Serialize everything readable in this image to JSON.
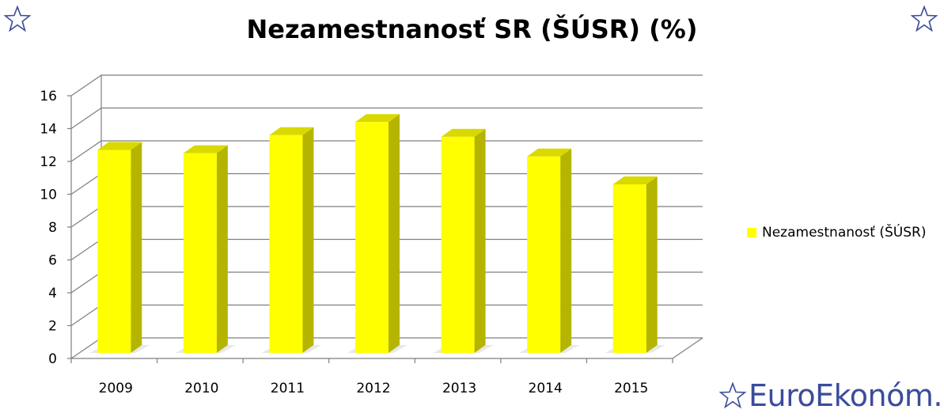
{
  "chart_data": {
    "type": "bar",
    "title": "Nezamestnanosť SR (ŠÚSR) (%)",
    "categories": [
      "2009",
      "2010",
      "2011",
      "2012",
      "2013",
      "2014",
      "2015"
    ],
    "series": [
      {
        "name": "Nezamestnanosť  (ŠÚSR)",
        "values": [
          12.7,
          12.5,
          13.6,
          14.4,
          13.5,
          12.3,
          10.6
        ]
      }
    ],
    "ylim": [
      0,
      16
    ],
    "yticks": [
      "0",
      "2",
      "4",
      "6",
      "8",
      "10",
      "12",
      "14",
      "16"
    ],
    "grid": true,
    "three_d": true,
    "legend_position": "right",
    "colors": {
      "bar_front": "#ffff00",
      "bar_side": "#b5b500",
      "bar_top": "#d9d900",
      "grid": "#7f7f7f"
    }
  },
  "watermark": {
    "text": "EuroEkonóm.sk",
    "icon": "star-outline-icon",
    "color": "#3b4c9a"
  },
  "decorations": {
    "top_left": "star-outline-icon",
    "top_right": "star-outline-icon"
  }
}
